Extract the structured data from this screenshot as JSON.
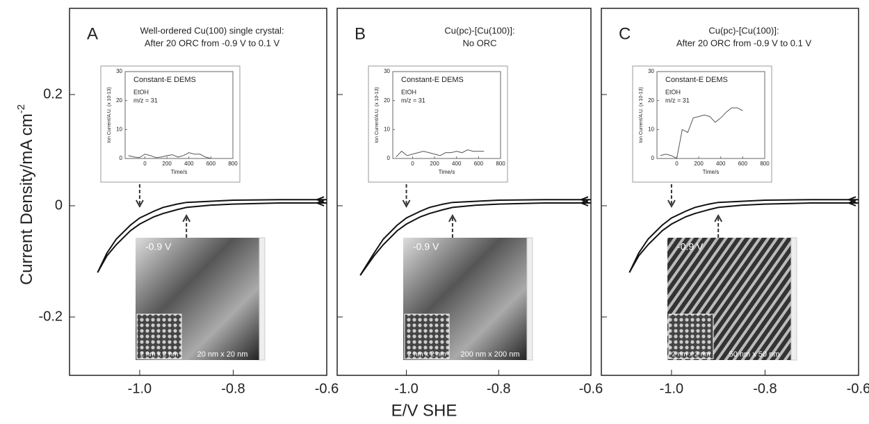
{
  "figure": {
    "xlabel": "E/V SHE",
    "ylabel": "Current Density/mA cm",
    "ylabel_sup": "-2"
  },
  "chart_data": [
    {
      "type": "line",
      "letter": "A",
      "title": [
        "Well-ordered Cu(100) single crystal:",
        "After 20 ORC from -0.9 V to 0.1 V"
      ],
      "xlim": [
        -1.15,
        -0.6
      ],
      "xticks": [
        {
          "value": -1,
          "label": "-1.0"
        },
        -0.8,
        -0.6
      ],
      "ylim": [
        -0.305,
        0.355
      ],
      "yticks": [
        0.2,
        0,
        -0.2
      ],
      "ytick_labels": true,
      "x": [
        -1.09,
        -1.07,
        -1.05,
        -1.02,
        -1.0,
        -0.97,
        -0.95,
        -0.92,
        -0.9,
        -0.85,
        -0.8,
        -0.7,
        -0.6
      ],
      "series": [
        {
          "color": "#111",
          "values": [
            -0.12,
            -0.09,
            -0.07,
            -0.045,
            -0.033,
            -0.02,
            -0.014,
            -0.007,
            -0.003,
            0.001,
            0.003,
            0.005,
            0.005
          ]
        },
        {
          "color": "#111",
          "values": [
            -0.12,
            -0.085,
            -0.06,
            -0.035,
            -0.022,
            -0.01,
            -0.003,
            0.003,
            0.006,
            0.008,
            0.01,
            0.011,
            0.011
          ]
        }
      ],
      "inset": {
        "title": "Constant-E DEMS",
        "species": "EtOH",
        "mz": "m/z = 31",
        "ylabel": "Ion Current/A.U. (x 10-13)",
        "xlabel": "Time/s",
        "xlim": [
          -180,
          800
        ],
        "xticks": [
          0,
          200,
          400,
          600,
          800
        ],
        "ylim": [
          0,
          30
        ],
        "yticks": [
          0,
          10,
          20,
          30
        ],
        "x": [
          -150,
          -100,
          -50,
          0,
          50,
          100,
          150,
          200,
          250,
          300,
          350,
          400,
          450,
          500,
          550,
          600
        ],
        "values": [
          1,
          0.5,
          0.3,
          1.5,
          1,
          0.3,
          0.5,
          1,
          1.3,
          0.5,
          1,
          2,
          1.5,
          1.5,
          0.5,
          0
        ]
      },
      "stm": {
        "potential": "-0.9 V",
        "scale": "20 nm x 20 nm",
        "inset_scale": "2 nm x 2 nm"
      }
    },
    {
      "type": "line",
      "letter": "B",
      "title": [
        "Cu(pc)-[Cu(100)]:",
        "No ORC"
      ],
      "xlim": [
        -1.15,
        -0.6
      ],
      "xticks": [
        {
          "value": -1,
          "label": "-1.0"
        },
        -0.8,
        -0.6
      ],
      "ylim": [
        -0.305,
        0.355
      ],
      "yticks": [
        0.2,
        0,
        -0.2
      ],
      "ytick_labels": false,
      "x": [
        -1.1,
        -1.07,
        -1.05,
        -1.02,
        -1.0,
        -0.97,
        -0.95,
        -0.92,
        -0.9,
        -0.85,
        -0.8,
        -0.7,
        -0.6
      ],
      "series": [
        {
          "color": "#111",
          "values": [
            -0.125,
            -0.09,
            -0.07,
            -0.045,
            -0.033,
            -0.02,
            -0.014,
            -0.007,
            -0.003,
            0.001,
            0.003,
            0.005,
            0.005
          ]
        },
        {
          "color": "#111",
          "values": [
            -0.125,
            -0.085,
            -0.06,
            -0.035,
            -0.022,
            -0.01,
            -0.003,
            0.003,
            0.006,
            0.008,
            0.01,
            0.011,
            0.011
          ]
        }
      ],
      "inset": {
        "title": "Constant-E DEMS",
        "species": "EtOH",
        "mz": "m/z = 31",
        "ylabel": "Ion Current/A.U. (x 10-13)",
        "xlabel": "Time/s",
        "xlim": [
          -180,
          800
        ],
        "xticks": [
          0,
          200,
          400,
          600,
          800
        ],
        "ylim": [
          0,
          30
        ],
        "yticks": [
          0,
          10,
          20,
          30
        ],
        "x": [
          -150,
          -100,
          -50,
          0,
          50,
          100,
          150,
          200,
          250,
          300,
          350,
          400,
          450,
          500,
          550,
          600,
          650
        ],
        "values": [
          0.5,
          2.5,
          1,
          1.5,
          2,
          2.5,
          2,
          1.5,
          1,
          2,
          2,
          2.5,
          2,
          3,
          2.5,
          2.5,
          2.5
        ]
      },
      "stm": {
        "potential": "-0.9 V",
        "scale": "200 nm x 200 nm",
        "inset_scale": "2 nm x 2 nm"
      }
    },
    {
      "type": "line",
      "letter": "C",
      "title": [
        "Cu(pc)-[Cu(100)]:",
        "After 20 ORC from -0.9 V to 0.1 V"
      ],
      "xlim": [
        -1.15,
        -0.6
      ],
      "xticks": [
        {
          "value": -1,
          "label": "-1.0"
        },
        -0.8,
        -0.6
      ],
      "ylim": [
        -0.305,
        0.355
      ],
      "yticks": [
        0.2,
        0,
        -0.2
      ],
      "ytick_labels": false,
      "x": [
        -1.09,
        -1.07,
        -1.05,
        -1.02,
        -1.0,
        -0.97,
        -0.95,
        -0.92,
        -0.9,
        -0.85,
        -0.8,
        -0.7,
        -0.6
      ],
      "series": [
        {
          "color": "#111",
          "values": [
            -0.12,
            -0.09,
            -0.07,
            -0.045,
            -0.033,
            -0.02,
            -0.014,
            -0.007,
            -0.003,
            0.001,
            0.003,
            0.005,
            0.005
          ]
        },
        {
          "color": "#111",
          "values": [
            -0.12,
            -0.085,
            -0.06,
            -0.035,
            -0.022,
            -0.01,
            -0.003,
            0.003,
            0.006,
            0.008,
            0.01,
            0.011,
            0.011
          ]
        }
      ],
      "inset": {
        "title": "Constant-E DEMS",
        "species": "EtOH",
        "mz": "m/z = 31",
        "ylabel": "Ion Current/A.U. (x 10-13)",
        "xlabel": "Time/s",
        "xlim": [
          -180,
          800
        ],
        "xticks": [
          0,
          200,
          400,
          600,
          800
        ],
        "ylim": [
          0,
          30
        ],
        "yticks": [
          0,
          10,
          20,
          30
        ],
        "x": [
          -150,
          -100,
          -50,
          0,
          50,
          100,
          150,
          200,
          250,
          300,
          350,
          400,
          450,
          500,
          550,
          600
        ],
        "values": [
          1,
          1.5,
          1,
          0,
          10,
          9,
          14,
          14.5,
          15,
          14.5,
          12.5,
          14,
          16,
          17.5,
          17.5,
          16.5
        ]
      },
      "stm": {
        "potential": "-0.9 V",
        "scale": "50 nm x 50 nm",
        "inset_scale": "2 nm x 2 nm"
      }
    }
  ]
}
